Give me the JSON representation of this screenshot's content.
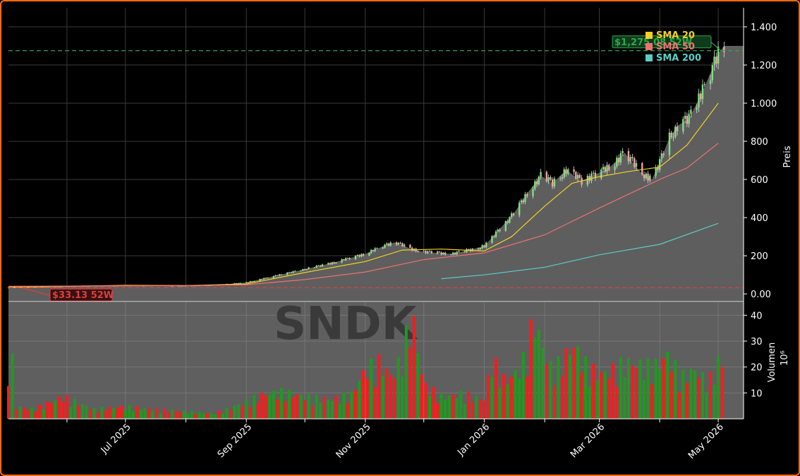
{
  "chart_data": {
    "type": "candlestick",
    "watermark": "SNDK",
    "x_tick_labels": [
      "Jul 2025",
      "Sep 2025",
      "Nov 2025",
      "Jan 2026",
      "Mar 2026",
      "May 2026"
    ],
    "x_ticks": [
      "2025-06-01",
      "2025-07-01",
      "2025-08-01",
      "2025-09-01",
      "2025-10-01",
      "2025-11-01",
      "2025-12-01",
      "2026-01-01",
      "2026-02-01",
      "2026-03-01",
      "2026-04-01",
      "2026-05-01"
    ],
    "x_range": [
      "2025-05-02",
      "2026-05-14"
    ],
    "price_panel": {
      "ylabel": "Preis",
      "ylim": [
        -40,
        1500
      ],
      "y_ticks": [
        0,
        200,
        400,
        600,
        800,
        1000,
        1200,
        1400
      ],
      "y_tick_labels": [
        "0.00",
        "200",
        "400",
        "600",
        "800",
        "1.000",
        "1.200",
        "1.400"
      ],
      "close_series": {
        "color": "#8c8c8c",
        "dates": [
          "2025-05-02",
          "2025-05-16",
          "2025-06-01",
          "2025-06-16",
          "2025-07-01",
          "2025-07-16",
          "2025-08-01",
          "2025-08-16",
          "2025-09-01",
          "2025-09-16",
          "2025-10-01",
          "2025-10-16",
          "2025-11-01",
          "2025-11-10",
          "2025-11-16",
          "2025-11-25",
          "2025-12-01",
          "2025-12-16",
          "2026-01-01",
          "2026-01-08",
          "2026-01-16",
          "2026-01-24",
          "2026-01-30",
          "2026-02-05",
          "2026-02-12",
          "2026-02-20",
          "2026-02-28",
          "2026-03-06",
          "2026-03-14",
          "2026-03-22",
          "2026-03-28",
          "2026-04-01",
          "2026-04-06",
          "2026-04-10",
          "2026-04-16",
          "2026-04-22",
          "2026-04-28",
          "2026-05-01",
          "2026-05-04"
        ],
        "values": [
          33,
          36,
          40,
          42,
          44,
          44,
          42,
          46,
          60,
          95,
          130,
          165,
          210,
          250,
          270,
          235,
          220,
          210,
          250,
          330,
          420,
          540,
          620,
          580,
          650,
          590,
          630,
          660,
          740,
          640,
          600,
          690,
          820,
          880,
          920,
          1040,
          1180,
          1260,
          1300
        ]
      },
      "sma": [
        {
          "name": "SMA 20",
          "color": "#f2d024",
          "dates": [
            "2025-05-02",
            "2025-06-01",
            "2025-07-01",
            "2025-08-01",
            "2025-09-01",
            "2025-10-01",
            "2025-11-01",
            "2025-11-20",
            "2025-12-10",
            "2026-01-01",
            "2026-01-15",
            "2026-02-01",
            "2026-02-15",
            "2026-03-01",
            "2026-03-15",
            "2026-04-01",
            "2026-04-15",
            "2026-05-01"
          ],
          "values": [
            36,
            40,
            45,
            44,
            52,
            112,
            170,
            230,
            235,
            225,
            300,
            460,
            580,
            615,
            640,
            665,
            780,
            1000
          ]
        },
        {
          "name": "SMA 50",
          "color": "#f07070",
          "dates": [
            "2025-05-02",
            "2025-06-01",
            "2025-07-01",
            "2025-08-01",
            "2025-09-01",
            "2025-10-01",
            "2025-11-01",
            "2025-12-01",
            "2026-01-01",
            "2026-02-01",
            "2026-03-01",
            "2026-04-01",
            "2026-04-15",
            "2026-05-01"
          ],
          "values": [
            40,
            41,
            43,
            44,
            48,
            75,
            115,
            180,
            215,
            310,
            450,
            600,
            660,
            790
          ]
        },
        {
          "name": "SMA 200",
          "color": "#5bcdc5",
          "dates": [
            "2025-12-10",
            "2026-01-01",
            "2026-02-01",
            "2026-03-01",
            "2026-04-01",
            "2026-05-01"
          ],
          "values": [
            80,
            100,
            140,
            205,
            260,
            370
          ]
        }
      ],
      "hlines": [
        {
          "value": 1275,
          "color": "#2ea84a",
          "label": "$1,275.08 52W"
        },
        {
          "value": 33.13,
          "color": "#d94040",
          "label": "$33.13 52W"
        }
      ]
    },
    "volume_panel": {
      "ylabel": "Volumen",
      "scale_label": "10⁶",
      "ylim": [
        0,
        45
      ],
      "y_ticks": [
        10,
        20,
        30,
        40
      ],
      "y_tick_labels": [
        "10",
        "20",
        "30",
        "40"
      ],
      "dates": [
        "2025-05-05",
        "2025-05-15",
        "2025-05-30",
        "2025-06-15",
        "2025-07-01",
        "2025-07-15",
        "2025-08-01",
        "2025-08-15",
        "2025-09-01",
        "2025-09-10",
        "2025-09-20",
        "2025-10-01",
        "2025-10-15",
        "2025-10-25",
        "2025-11-01",
        "2025-11-08",
        "2025-11-15",
        "2025-11-20",
        "2025-11-25",
        "2025-12-01",
        "2025-12-10",
        "2025-12-20",
        "2026-01-01",
        "2026-01-05",
        "2026-01-12",
        "2026-01-20",
        "2026-01-27",
        "2026-01-30",
        "2026-02-05",
        "2026-02-10",
        "2026-02-16",
        "2026-02-22",
        "2026-03-01",
        "2026-03-08",
        "2026-03-15",
        "2026-03-22",
        "2026-03-29",
        "2026-04-05",
        "2026-04-12",
        "2026-04-19",
        "2026-04-26",
        "2026-05-01"
      ],
      "values": [
        5,
        4,
        9,
        4,
        5,
        4,
        3,
        2,
        7,
        10,
        11,
        9,
        8,
        10,
        20,
        23,
        17,
        26,
        43,
        14,
        9,
        10,
        8,
        24,
        15,
        21,
        41,
        31,
        19,
        24,
        30,
        22,
        18,
        20,
        23,
        22,
        21,
        26,
        17,
        20,
        15,
        23
      ],
      "up": [
        true,
        false,
        false,
        true,
        false,
        true,
        false,
        true,
        true,
        false,
        true,
        false,
        true,
        true,
        false,
        false,
        false,
        true,
        false,
        false,
        false,
        true,
        false,
        true,
        false,
        true,
        false,
        true,
        true,
        false,
        false,
        true,
        true,
        false,
        true,
        false,
        true,
        true,
        false,
        true,
        true,
        true
      ]
    },
    "legend": {
      "position": "top-right",
      "entries": [
        "SMA 20",
        "SMA 50",
        "SMA 200"
      ]
    }
  }
}
